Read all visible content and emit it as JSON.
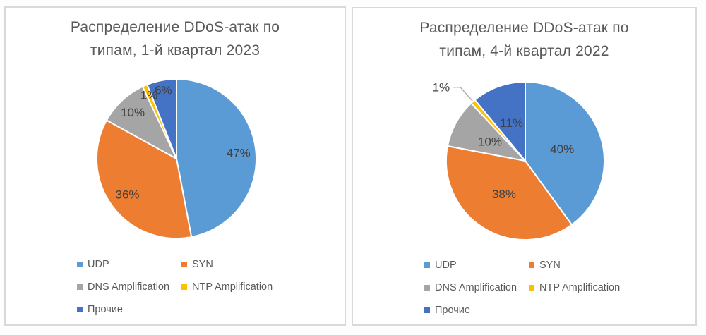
{
  "style_colors": {
    "panel_border": "#d9d9d9",
    "panel_background": "#ffffff",
    "title_text": "#595959",
    "legend_text": "#595959",
    "data_label_text": "#404040",
    "leader_line": "#a6a6a6",
    "slice_separator": "#ffffff"
  },
  "chart_data": [
    {
      "type": "pie",
      "title_line1": "Распределение DDoS-атак по",
      "title_line2": "типам, 1-й квартал 2023",
      "categories": [
        "UDP",
        "SYN",
        "DNS Amplification",
        "NTP Amplification",
        "Прочие"
      ],
      "values": [
        47,
        36,
        10,
        1,
        6
      ],
      "data_labels": [
        "47%",
        "36%",
        "10%",
        "1%",
        "6%"
      ],
      "colors": [
        "#5B9BD5",
        "#ED7D31",
        "#A5A5A5",
        "#FFC000",
        "#4472C4"
      ],
      "start_angle_deg": 0,
      "direction": "clockwise",
      "legend_position": "bottom-left-two-columns",
      "label_placement": [
        "inside",
        "inside",
        "inside",
        "inside",
        "inside"
      ],
      "label_radius_factors": [
        0.78,
        0.76,
        0.8,
        0.87,
        0.88
      ]
    },
    {
      "type": "pie",
      "title_line1": "Распределение DDoS-атак по",
      "title_line2": "типам, 4-й квартал 2022",
      "categories": [
        "UDP",
        "SYN",
        "DNS Amplification",
        "NTP Amplification",
        "Прочие"
      ],
      "values": [
        40,
        38,
        10,
        1,
        11
      ],
      "data_labels": [
        "40%",
        "38%",
        "10%",
        "1%",
        "11%"
      ],
      "colors": [
        "#5B9BD5",
        "#ED7D31",
        "#A5A5A5",
        "#FFC000",
        "#4472C4"
      ],
      "start_angle_deg": 0,
      "direction": "clockwise",
      "legend_position": "bottom-left-two-columns",
      "label_placement": [
        "inside",
        "inside",
        "inside",
        "outside-leader",
        "inside"
      ],
      "label_radius_factors": [
        0.49,
        0.5,
        0.51,
        1.0,
        0.51
      ]
    }
  ]
}
